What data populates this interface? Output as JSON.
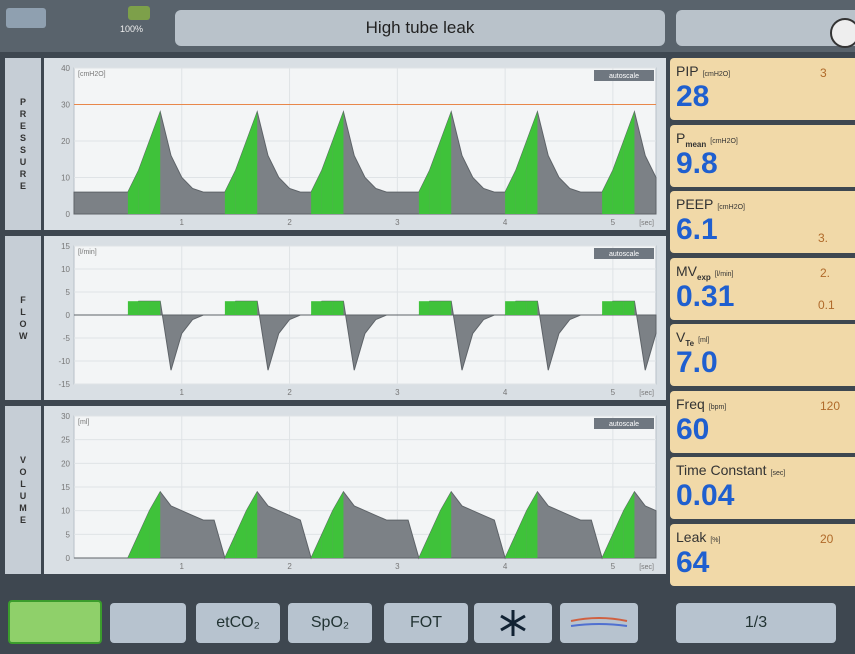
{
  "top_bar": {
    "battery": "100%",
    "alarm": "High tube leak"
  },
  "waveforms": {
    "x": [
      0,
      0.1,
      0.2,
      0.3,
      0.4,
      0.5,
      0.6,
      0.7,
      0.8,
      0.9,
      1,
      1.1,
      1.2,
      1.3,
      1.4,
      1.5,
      1.6,
      1.7,
      1.8,
      1.9,
      2,
      2.1,
      2.2,
      2.3,
      2.4,
      2.5,
      2.6,
      2.7,
      2.8,
      2.9,
      3,
      3.1,
      3.2,
      3.3,
      3.4,
      3.5,
      3.6,
      3.7,
      3.8,
      3.9,
      4,
      4.1,
      4.2,
      4.3,
      4.4,
      4.5,
      4.6,
      4.7,
      4.8,
      4.9,
      5,
      5.1,
      5.2,
      5.3,
      5.4
    ],
    "xlim": [
      0,
      5.4
    ],
    "xticks": [
      1,
      2,
      3,
      4,
      5
    ],
    "x_unit": "[sec]",
    "autoscale": "autoscale",
    "panels": [
      {
        "side_label": "PRESSURE",
        "unit": "[cmH2O]",
        "ylim": [
          0,
          40
        ],
        "yticks": [
          0,
          10,
          20,
          30,
          40
        ],
        "alarm_limit": 30,
        "values": [
          6,
          6,
          6,
          6,
          6,
          6,
          12,
          20,
          28,
          16,
          10,
          7,
          6,
          6,
          6,
          12,
          20,
          28,
          16,
          10,
          7,
          6,
          6,
          12,
          20,
          28,
          16,
          10,
          7,
          6,
          6,
          6,
          6,
          12,
          20,
          28,
          16,
          10,
          7,
          6,
          6,
          12,
          20,
          28,
          16,
          10,
          7,
          6,
          6,
          6,
          12,
          20,
          28,
          16,
          10
        ]
      },
      {
        "side_label": "FLOW",
        "unit": "[l/min]",
        "ylim": [
          -15,
          15
        ],
        "yticks": [
          -15,
          -10,
          -5,
          0,
          5,
          10,
          15
        ],
        "values": [
          0,
          0,
          0,
          0,
          0,
          0,
          3,
          3,
          3,
          -12,
          -4,
          -1,
          0,
          0,
          0,
          3,
          3,
          3,
          -12,
          -4,
          -1,
          0,
          0,
          3,
          3,
          3,
          -12,
          -4,
          -1,
          0,
          0,
          0,
          0,
          3,
          3,
          3,
          -12,
          -4,
          -1,
          0,
          0,
          3,
          3,
          3,
          -12,
          -4,
          -1,
          0,
          0,
          0,
          3,
          3,
          3,
          -12,
          -4
        ]
      },
      {
        "side_label": "VOLUME",
        "unit": "[ml]",
        "ylim": [
          0,
          30
        ],
        "yticks": [
          0,
          5,
          10,
          15,
          20,
          25,
          30
        ],
        "values": [
          0,
          0,
          0,
          0,
          0,
          0,
          5,
          10,
          14,
          11,
          10,
          9,
          8,
          8,
          0,
          5,
          10,
          14,
          11,
          10,
          9,
          8,
          0,
          5,
          10,
          14,
          11,
          10,
          9,
          8,
          8,
          8,
          0,
          5,
          10,
          14,
          11,
          10,
          9,
          8,
          0,
          5,
          10,
          14,
          11,
          10,
          9,
          8,
          8,
          0,
          5,
          10,
          14,
          11,
          10
        ]
      }
    ]
  },
  "parameters": [
    {
      "label": "PIP",
      "unit": "[cmH2O]",
      "value": "28",
      "limit_high": "3"
    },
    {
      "label": "P",
      "sub": "mean",
      "unit": "[cmH2O]",
      "value": "9.8"
    },
    {
      "label": "PEEP",
      "unit": "[cmH2O]",
      "value": "6.1",
      "limit_low": "3."
    },
    {
      "label": "MV",
      "sub": "exp",
      "unit": "[l/min]",
      "value": "0.31",
      "limit_high": "2.",
      "limit_low": "0.1"
    },
    {
      "label": "V",
      "sub": "Te",
      "unit": "[ml]",
      "value": "7.0"
    },
    {
      "label": "Freq",
      "unit": "[bpm]",
      "value": "60",
      "limit_high": "120"
    },
    {
      "label": "Time Constant",
      "unit": "[sec]",
      "value": "0.04"
    },
    {
      "label": "Leak",
      "unit": "[%]",
      "value": "64",
      "limit_high": "20"
    }
  ],
  "bottom_bar": {
    "buttons": [
      "etCO₂",
      "SpO₂",
      "FOT"
    ],
    "page": "1/3"
  }
}
